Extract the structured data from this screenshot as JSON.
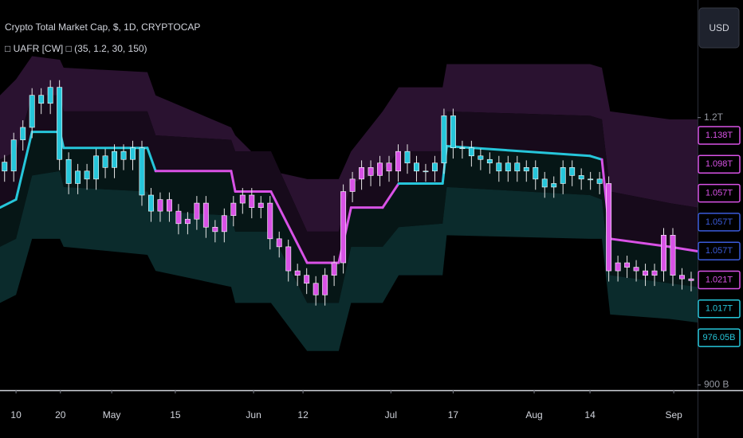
{
  "chart_data": {
    "type": "candlestick",
    "title": "Crypto Total Market Cap, $, 1D, CRYPTOCAP",
    "indicator": "□ UAFR [CW] □ (35, 1.2, 30, 150)",
    "currency_button": "USD",
    "x": [
      1,
      3,
      5,
      7,
      9,
      11,
      13,
      15,
      17,
      19,
      21,
      23,
      25,
      27,
      29,
      31,
      33,
      35,
      37,
      39,
      41,
      43,
      45,
      47,
      49,
      51,
      53,
      55,
      57,
      59,
      61,
      63,
      65,
      67,
      69,
      71,
      73,
      75,
      77,
      79,
      81,
      83,
      85,
      87,
      89,
      91,
      93,
      95,
      97,
      99,
      101,
      103,
      105,
      107,
      109,
      111,
      113,
      115,
      117,
      119,
      121,
      123,
      125,
      127,
      129,
      131,
      133,
      135,
      137,
      139,
      141,
      143,
      145,
      147,
      149,
      151
    ],
    "open": [
      1150,
      1140,
      1175,
      1189,
      1225,
      1216,
      1234,
      1153,
      1126,
      1140,
      1131,
      1157,
      1144,
      1162,
      1153,
      1166,
      1113,
      1095,
      1108,
      1095,
      1081,
      1086,
      1104,
      1077,
      1072,
      1090,
      1104,
      1113,
      1099,
      1104,
      1064,
      1055,
      1028,
      1023,
      1014,
      1001,
      1023,
      1037,
      1117,
      1131,
      1144,
      1135,
      1149,
      1140,
      1162,
      1149,
      1140,
      1140,
      1149,
      1202,
      1166,
      1166,
      1157,
      1153,
      1149,
      1140,
      1149,
      1140,
      1144,
      1131,
      1122,
      1126,
      1144,
      1135,
      1131,
      1131,
      1126,
      1028,
      1037,
      1032,
      1028,
      1023,
      1028,
      1068,
      1023,
      1019
    ],
    "high": [
      1158,
      1183,
      1197,
      1233,
      1233,
      1242,
      1242,
      1161,
      1148,
      1148,
      1165,
      1165,
      1170,
      1170,
      1174,
      1174,
      1121,
      1116,
      1116,
      1103,
      1094,
      1112,
      1112,
      1085,
      1098,
      1112,
      1121,
      1121,
      1112,
      1112,
      1072,
      1063,
      1036,
      1031,
      1022,
      1031,
      1045,
      1125,
      1139,
      1152,
      1152,
      1157,
      1157,
      1170,
      1170,
      1157,
      1148,
      1157,
      1210,
      1210,
      1174,
      1174,
      1165,
      1161,
      1157,
      1157,
      1157,
      1152,
      1152,
      1139,
      1134,
      1152,
      1152,
      1143,
      1139,
      1139,
      1134,
      1045,
      1045,
      1040,
      1036,
      1036,
      1076,
      1076,
      1031,
      1027
    ],
    "low": [
      1128,
      1128,
      1163,
      1177,
      1204,
      1204,
      1141,
      1114,
      1114,
      1119,
      1119,
      1132,
      1132,
      1141,
      1141,
      1101,
      1083,
      1083,
      1083,
      1069,
      1069,
      1074,
      1065,
      1060,
      1060,
      1078,
      1092,
      1087,
      1087,
      1052,
      1043,
      1016,
      1011,
      1002,
      989,
      989,
      1011,
      1025,
      1105,
      1119,
      1123,
      1123,
      1128,
      1128,
      1137,
      1128,
      1128,
      1128,
      1137,
      1154,
      1154,
      1145,
      1141,
      1137,
      1128,
      1128,
      1128,
      1128,
      1119,
      1110,
      1110,
      1114,
      1123,
      1119,
      1119,
      1114,
      1016,
      1016,
      1020,
      1016,
      1011,
      1011,
      1016,
      1011,
      1007,
      1005
    ],
    "close": [
      1140,
      1175,
      1189,
      1225,
      1216,
      1234,
      1153,
      1126,
      1140,
      1131,
      1157,
      1144,
      1162,
      1153,
      1166,
      1113,
      1095,
      1108,
      1095,
      1081,
      1086,
      1104,
      1077,
      1072,
      1090,
      1104,
      1113,
      1099,
      1104,
      1064,
      1055,
      1028,
      1023,
      1014,
      1001,
      1023,
      1037,
      1117,
      1131,
      1144,
      1135,
      1149,
      1140,
      1162,
      1149,
      1140,
      1140,
      1149,
      1202,
      1166,
      1166,
      1157,
      1153,
      1149,
      1140,
      1149,
      1140,
      1144,
      1131,
      1122,
      1126,
      1144,
      1135,
      1131,
      1131,
      1126,
      1028,
      1037,
      1032,
      1028,
      1023,
      1028,
      1068,
      1023,
      1019,
      1017
    ],
    "xlim": [
      0,
      152.4
    ],
    "xticks": [
      {
        "value": 3.5,
        "label": "10"
      },
      {
        "value": 13.2,
        "label": "20"
      },
      {
        "value": 24.4,
        "label": "May"
      },
      {
        "value": 38.3,
        "label": "15"
      },
      {
        "value": 55.4,
        "label": "Jun"
      },
      {
        "value": 66.2,
        "label": "12"
      },
      {
        "value": 85.4,
        "label": "Jul"
      },
      {
        "value": 99,
        "label": "17"
      },
      {
        "value": 116.7,
        "label": "Aug"
      },
      {
        "value": 128.9,
        "label": "14"
      },
      {
        "value": 147.2,
        "label": "Sep"
      }
    ],
    "ylim": [
      894,
      1332
    ],
    "yticks": [
      {
        "value": 900,
        "label": "900 B"
      },
      {
        "value": 1200,
        "label": "1.2T"
      }
    ],
    "bands": {
      "x": [
        0,
        3.5,
        7,
        13.1,
        13.9,
        32.2,
        34,
        50.5,
        51.4,
        59.2,
        67.1,
        74,
        76.7,
        83.6,
        87.1,
        96.7,
        97.6,
        128.9,
        131.5,
        133.3,
        146.3,
        152.4
      ],
      "upper_outer": [
        1225,
        1243,
        1269,
        1265,
        1256,
        1251,
        1225,
        1189,
        1180,
        1140,
        1131,
        1131,
        1162,
        1207,
        1234,
        1234,
        1260,
        1260,
        1256,
        1207,
        1198,
        1198
      ],
      "upper_inner": [
        1153,
        1162,
        1225,
        1225,
        1207,
        1207,
        1180,
        1175,
        1162,
        1162,
        1072,
        1072,
        1126,
        1140,
        1162,
        1162,
        1207,
        1202,
        1198,
        1117,
        1104,
        1099
      ],
      "trend": [
        1099,
        1108,
        1184,
        1184,
        1166,
        1166,
        1140,
        1140,
        1117,
        1117,
        1037,
        1037,
        1099,
        1099,
        1126,
        1126,
        1168,
        1157,
        1153,
        1064,
        1055,
        1050
      ],
      "lower_inner": [
        1055,
        1064,
        1135,
        1140,
        1122,
        1117,
        1095,
        1090,
        1072,
        1072,
        992,
        992,
        1055,
        1055,
        1077,
        1081,
        1122,
        1113,
        1108,
        1023,
        1014,
        1010
      ],
      "lower_outer": [
        992,
        1001,
        1064,
        1064,
        1055,
        1046,
        1028,
        1010,
        992,
        992,
        938,
        938,
        992,
        992,
        1023,
        1023,
        1068,
        1064,
        1064,
        979,
        974,
        970
      ],
      "trend_colors": [
        "#26c6da",
        "#26c6da",
        "#26c6da",
        "#26c6da",
        "#26c6da",
        "#26c6da",
        "#d852e6",
        "#d852e6",
        "#d852e6",
        "#d852e6",
        "#d852e6",
        "#d852e6",
        "#d852e6",
        "#d852e6",
        "#26c6da",
        "#26c6da",
        "#26c6da",
        "#26c6da",
        "#d852e6",
        "#d852e6",
        "#d852e6",
        "#d852e6"
      ],
      "fill_colors": [
        "#2a1230",
        "#170a1b",
        "#061616",
        "#0b2b2c"
      ]
    },
    "price_tags": [
      {
        "label": "1.138T",
        "color": "#d852e6"
      },
      {
        "label": "1.098T",
        "color": "#d852e6"
      },
      {
        "label": "1.057T",
        "color": "#d852e6"
      },
      {
        "label": "1.057T",
        "color": "#3b5bdb"
      },
      {
        "label": "1.057T",
        "color": "#3b5bdb"
      },
      {
        "label": "1.021T",
        "color": "#d852e6"
      },
      {
        "label": "1.017T",
        "color": "#26c6da"
      },
      {
        "label": "976.05B",
        "color": "#26c6da"
      }
    ]
  }
}
